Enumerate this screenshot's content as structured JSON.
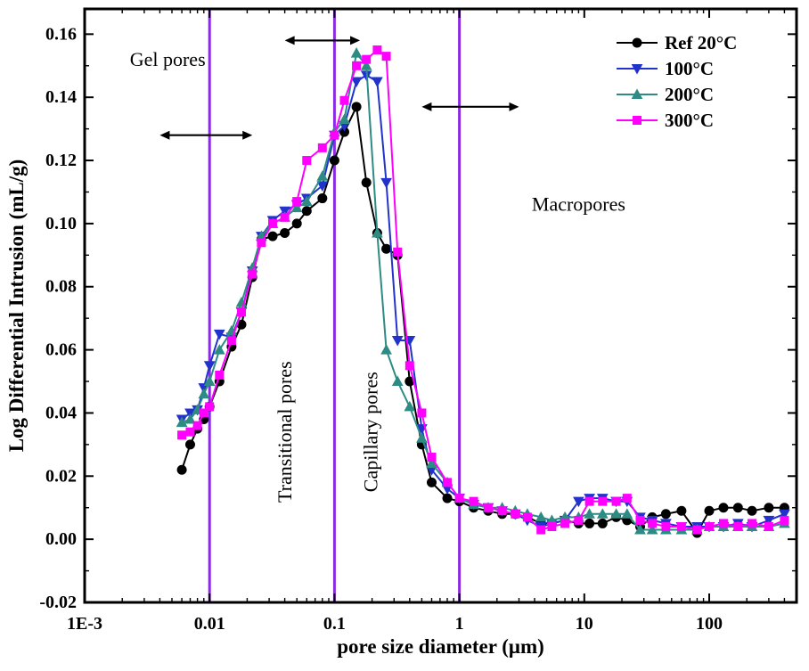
{
  "figure": {
    "background": "#ffffff"
  },
  "chart_data": {
    "type": "line",
    "title": "",
    "xlabel": "pore size diameter (μm)",
    "ylabel": "Log Differential Intrusion (mL/g)",
    "x_scale": "log",
    "xlim": [
      0.001,
      500
    ],
    "ylim": [
      -0.02,
      0.168
    ],
    "grid": false,
    "legend_position": "top-right",
    "x_ticks": [
      {
        "value": 0.001,
        "label": "1E-3"
      },
      {
        "value": 0.01,
        "label": "0.01"
      },
      {
        "value": 0.1,
        "label": "0.1"
      },
      {
        "value": 1,
        "label": "1"
      },
      {
        "value": 10,
        "label": "10"
      },
      {
        "value": 100,
        "label": "100"
      }
    ],
    "y_ticks": [
      {
        "value": -0.02,
        "label": "-0.02"
      },
      {
        "value": 0.0,
        "label": "0.00"
      },
      {
        "value": 0.02,
        "label": "0.02"
      },
      {
        "value": 0.04,
        "label": "0.04"
      },
      {
        "value": 0.06,
        "label": "0.06"
      },
      {
        "value": 0.08,
        "label": "0.08"
      },
      {
        "value": 0.1,
        "label": "0.10"
      },
      {
        "value": 0.12,
        "label": "0.12"
      },
      {
        "value": 0.14,
        "label": "0.14"
      },
      {
        "value": 0.16,
        "label": "0.16"
      }
    ],
    "x": [
      0.006,
      0.007,
      0.008,
      0.009,
      0.01,
      0.012,
      0.015,
      0.018,
      0.022,
      0.026,
      0.032,
      0.04,
      0.05,
      0.06,
      0.08,
      0.1,
      0.12,
      0.15,
      0.18,
      0.22,
      0.26,
      0.32,
      0.4,
      0.5,
      0.6,
      0.8,
      1.0,
      1.3,
      1.7,
      2.2,
      2.8,
      3.5,
      4.5,
      5.5,
      7,
      9,
      11,
      14,
      18,
      22,
      28,
      35,
      45,
      60,
      80,
      100,
      130,
      170,
      220,
      300,
      400
    ],
    "series": [
      {
        "name": "Ref 20°C",
        "color": "#000000",
        "marker": "circle",
        "values": [
          0.022,
          0.03,
          0.035,
          0.038,
          0.042,
          0.05,
          0.061,
          0.068,
          0.083,
          0.095,
          0.096,
          0.097,
          0.1,
          0.104,
          0.108,
          0.12,
          0.129,
          0.137,
          0.113,
          0.097,
          0.092,
          0.09,
          0.05,
          0.03,
          0.018,
          0.013,
          0.012,
          0.01,
          0.009,
          0.008,
          0.008,
          0.007,
          0.005,
          0.005,
          0.006,
          0.005,
          0.005,
          0.005,
          0.007,
          0.006,
          0.004,
          0.007,
          0.008,
          0.009,
          0.002,
          0.009,
          0.01,
          0.01,
          0.009,
          0.01,
          0.01
        ]
      },
      {
        "name": "100°C",
        "color": "#2233cc",
        "marker": "triangle-down",
        "values": [
          0.038,
          0.04,
          0.041,
          0.048,
          0.055,
          0.065,
          0.064,
          0.072,
          0.085,
          0.096,
          0.101,
          0.104,
          0.106,
          0.108,
          0.112,
          0.128,
          0.131,
          0.145,
          0.147,
          0.145,
          0.113,
          0.063,
          0.063,
          0.035,
          0.022,
          0.016,
          0.013,
          0.011,
          0.01,
          0.009,
          0.008,
          0.006,
          0.004,
          0.005,
          0.006,
          0.012,
          0.013,
          0.013,
          0.012,
          0.012,
          0.007,
          0.006,
          0.005,
          0.004,
          0.004,
          0.004,
          0.004,
          0.005,
          0.004,
          0.006,
          0.008
        ]
      },
      {
        "name": "200°C",
        "color": "#2e8b84",
        "marker": "triangle-up",
        "values": [
          0.037,
          0.038,
          0.041,
          0.046,
          0.05,
          0.06,
          0.066,
          0.075,
          0.086,
          0.096,
          0.1,
          0.102,
          0.105,
          0.107,
          0.115,
          0.129,
          0.133,
          0.154,
          0.15,
          0.097,
          0.06,
          0.05,
          0.042,
          0.032,
          0.024,
          0.018,
          0.013,
          0.011,
          0.01,
          0.01,
          0.009,
          0.008,
          0.007,
          0.006,
          0.007,
          0.007,
          0.008,
          0.008,
          0.008,
          0.008,
          0.003,
          0.003,
          0.003,
          0.003,
          0.003,
          0.004,
          0.004,
          0.004,
          0.004,
          0.004,
          0.005
        ]
      },
      {
        "name": "300°C",
        "color": "#ff00ff",
        "marker": "square",
        "values": [
          0.033,
          0.034,
          0.036,
          0.04,
          0.042,
          0.052,
          0.063,
          0.072,
          0.084,
          0.094,
          0.1,
          0.102,
          0.107,
          0.12,
          0.124,
          0.128,
          0.139,
          0.15,
          0.152,
          0.155,
          0.153,
          0.091,
          0.055,
          0.04,
          0.026,
          0.018,
          0.013,
          0.012,
          0.01,
          0.009,
          0.008,
          0.007,
          0.003,
          0.004,
          0.005,
          0.006,
          0.012,
          0.012,
          0.012,
          0.013,
          0.006,
          0.005,
          0.004,
          0.004,
          0.003,
          0.004,
          0.005,
          0.004,
          0.005,
          0.004,
          0.006
        ]
      }
    ],
    "region_boundaries": {
      "color": "#8a2be2",
      "values": [
        0.01,
        0.1,
        1
      ]
    },
    "annotations": [
      {
        "text": "Gel pores",
        "x": 0.0023,
        "y": 0.15,
        "rotate": 0
      },
      {
        "text": "Transitional pores",
        "x": 0.045,
        "y": 0.034,
        "rotate": -90
      },
      {
        "text": "Capillary pores",
        "x": 0.22,
        "y": 0.034,
        "rotate": -90
      },
      {
        "text": "Macropores",
        "x": 3.8,
        "y": 0.104,
        "rotate": 0
      }
    ],
    "arrows": [
      {
        "x1": 0.004,
        "x2": 0.022,
        "y": 0.128
      },
      {
        "x1": 0.04,
        "x2": 0.16,
        "y": 0.158
      },
      {
        "x1": 0.5,
        "x2": 3.0,
        "y": 0.137
      }
    ]
  }
}
